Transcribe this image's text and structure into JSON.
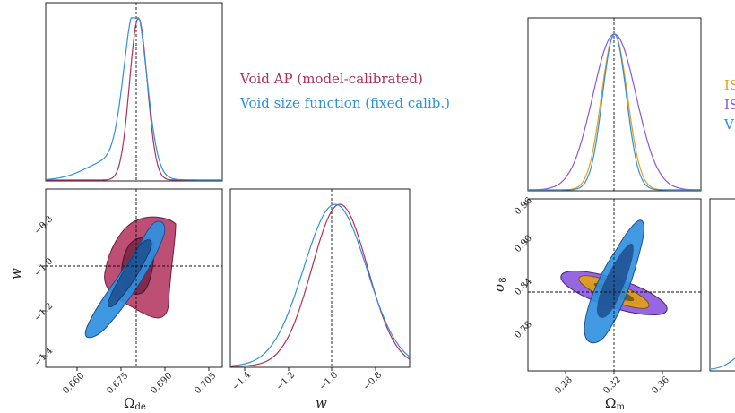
{
  "colors": {
    "void_ap": "#b0305a",
    "void_ap_dark": "#6e1f3c",
    "vsf": "#2e8fe0",
    "vsf_dark": "#1d4f8f",
    "isw": "#e0a020",
    "isw_dark": "#7a5210",
    "isw2": "#8b55e0",
    "isw2_dark": "#4a2a7a"
  },
  "left_figure": {
    "legend": [
      {
        "label": "Void AP (model-calibrated)",
        "color": "#b0305a"
      },
      {
        "label": "Void size function (fixed calib.)",
        "color": "#2e8fe0"
      }
    ],
    "xlabel_2d": "Ω",
    "xlabel_2d_sub": "de",
    "ylabel_2d": "w",
    "xlabel_1d": "w",
    "x_ticks": [
      "0.660",
      "0.675",
      "0.690",
      "0.705"
    ],
    "y_ticks": [
      "−0.8",
      "−1.0",
      "−1.2",
      "−1.4"
    ],
    "w_ticks": [
      "−1.4",
      "−1.2",
      "−1.0",
      "−0.8"
    ]
  },
  "right_figure": {
    "legend": [
      {
        "label": "IS",
        "color": "#e0a020"
      },
      {
        "label": "IS",
        "color": "#8b55e0"
      },
      {
        "label": "V",
        "color": "#2e8fe0"
      }
    ],
    "xlabel_2d": "Ω",
    "xlabel_2d_sub": "m",
    "ylabel_2d": "σ",
    "ylabel_2d_sub": "8",
    "x_ticks": [
      "0.28",
      "0.32",
      "0.36"
    ],
    "y_ticks": [
      "0.96",
      "0.90",
      "0.84",
      "0.78"
    ]
  },
  "chart_data": [
    {
      "type": "line",
      "panel": "Omega_de marginal",
      "xlim": [
        0.65,
        0.71
      ],
      "fiducial": 0.68,
      "series": [
        {
          "name": "Void AP (model-calibrated)",
          "mean": 0.6815,
          "sigma": 0.003
        },
        {
          "name": "Void size function (fixed calib.)",
          "mean": 0.6805,
          "sigma": 0.0038
        }
      ]
    },
    {
      "type": "scatter",
      "panel": "Omega_de - w contours",
      "xlim": [
        0.65,
        0.71
      ],
      "ylim": [
        -1.45,
        -0.7
      ],
      "fiducial": [
        0.68,
        -1.0
      ],
      "series": [
        {
          "name": "Void AP (model-calibrated)",
          "center": [
            0.6805,
            -1.02
          ],
          "outer_width": [
            0.028,
            0.5
          ]
        },
        {
          "name": "Void size function (fixed calib.)",
          "center": [
            0.679,
            -1.05
          ],
          "orientation": "positive correlation"
        }
      ]
    },
    {
      "type": "line",
      "panel": "w marginal",
      "xlim": [
        -1.47,
        -0.7
      ],
      "fiducial": -1.0,
      "series": [
        {
          "name": "Void AP (model-calibrated)",
          "mean": -1.0,
          "sigma": 0.12
        },
        {
          "name": "Void size function (fixed calib.)",
          "mean": -1.02,
          "sigma": 0.135
        }
      ]
    },
    {
      "type": "line",
      "panel": "Omega_m marginal",
      "xlim": [
        0.24,
        0.4
      ],
      "fiducial": 0.32,
      "series": [
        {
          "name": "IS",
          "mean": 0.32,
          "sigma": 0.012
        },
        {
          "name": "IS",
          "mean": 0.32,
          "sigma": 0.02
        },
        {
          "name": "V",
          "mean": 0.32,
          "sigma": 0.011
        }
      ]
    },
    {
      "type": "scatter",
      "panel": "Omega_m - sigma_8 contours",
      "xlim": [
        0.24,
        0.4
      ],
      "ylim": [
        0.74,
        0.97
      ],
      "fiducial": [
        0.32,
        0.83
      ],
      "series": [
        {
          "name": "IS",
          "center": [
            0.32,
            0.83
          ],
          "orientation": "negative correlation"
        },
        {
          "name": "IS",
          "center": [
            0.32,
            0.83
          ],
          "orientation": "negative correlation, broader"
        },
        {
          "name": "V",
          "center": [
            0.322,
            0.84
          ],
          "orientation": "positive correlation"
        }
      ]
    }
  ]
}
